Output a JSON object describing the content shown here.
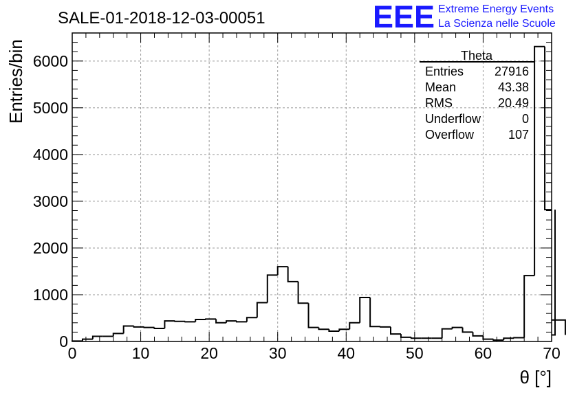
{
  "run_title": "SALE-01-2018-12-03-00051",
  "logo": {
    "mark": "EEE",
    "line1": "Extreme Energy Events",
    "line2": "La Scienza nelle Scuole",
    "color": "#1a1aff"
  },
  "stats_box": {
    "name": "Theta",
    "rows": [
      {
        "label": "Entries",
        "value": "27916"
      },
      {
        "label": "Mean",
        "value": "43.38"
      },
      {
        "label": "RMS",
        "value": "20.49"
      },
      {
        "label": "Underflow",
        "value": "0"
      },
      {
        "label": "Overflow",
        "value": "107"
      }
    ]
  },
  "chart_data": {
    "type": "histogram",
    "title": "SALE-01-2018-12-03-00051",
    "xlabel": "θ [°]",
    "ylabel": "Entries/bin",
    "xlim": [
      0,
      70
    ],
    "ylim": [
      0,
      6600
    ],
    "grid": true,
    "bin_width": 1.5,
    "bin_start": 0,
    "values": [
      10,
      50,
      110,
      110,
      170,
      330,
      310,
      300,
      280,
      440,
      430,
      420,
      470,
      480,
      400,
      440,
      420,
      510,
      830,
      1420,
      1600,
      1280,
      820,
      300,
      260,
      220,
      260,
      400,
      940,
      320,
      310,
      160,
      90,
      70,
      70,
      70,
      270,
      300,
      200,
      120,
      50,
      30,
      70,
      80,
      1410,
      6310,
      2820,
      140,
      460
    ],
    "x_ticks": [
      0,
      10,
      20,
      30,
      40,
      50,
      60,
      70
    ],
    "y_ticks": [
      0,
      1000,
      2000,
      3000,
      4000,
      5000,
      6000
    ],
    "line_color": "#000000"
  }
}
